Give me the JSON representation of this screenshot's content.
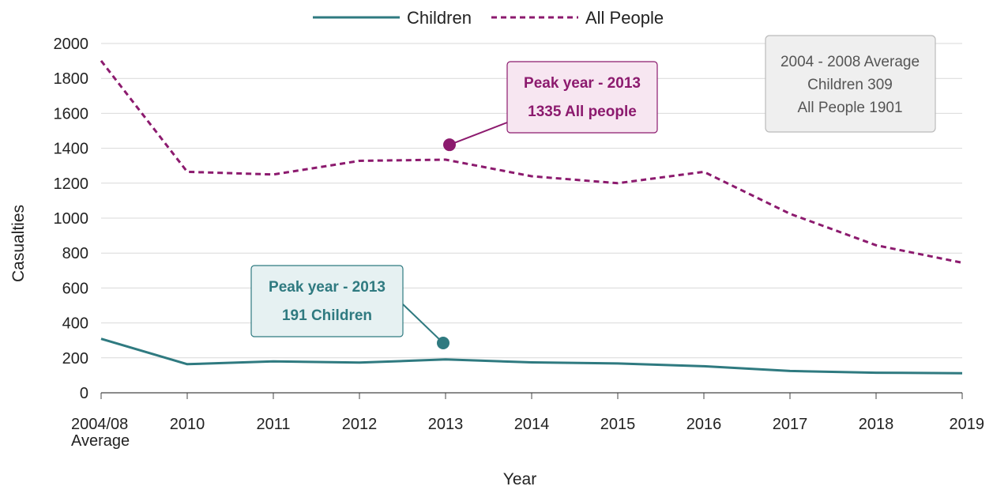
{
  "chart_data": {
    "type": "line",
    "xlabel": "Year",
    "ylabel": "Casualties",
    "ylim": [
      0,
      2000
    ],
    "y_ticks": [
      "0",
      "200",
      "400",
      "600",
      "800",
      "1000",
      "1200",
      "1400",
      "1600",
      "1800",
      "2000"
    ],
    "categories": [
      [
        "2004/08",
        "Average"
      ],
      [
        "2010"
      ],
      [
        "2011"
      ],
      [
        "2012"
      ],
      [
        "2013"
      ],
      [
        "2014"
      ],
      [
        "2015"
      ],
      [
        "2016"
      ],
      [
        "2017"
      ],
      [
        "2018"
      ],
      [
        "2019"
      ]
    ],
    "legend_position": "top-center",
    "grid": "horizontal",
    "series": [
      {
        "name": "Children",
        "style": "solid",
        "color": "#2f7a80",
        "values": [
          309,
          164,
          180,
          173,
          191,
          174,
          168,
          152,
          125,
          115,
          112
        ]
      },
      {
        "name": "All People",
        "style": "dashed",
        "color": "#8c1a6e",
        "values": [
          1901,
          1265,
          1250,
          1328,
          1335,
          1240,
          1200,
          1265,
          1025,
          845,
          745
        ]
      }
    ],
    "annotations": [
      {
        "series": "All People",
        "lines": [
          "Peak year - 2013",
          "1335 All people"
        ],
        "text_color": "#8c1a6e",
        "fill": "#f7e6f1",
        "border": "#8c1a6e",
        "marker_color": "#8c1a6e",
        "marker_x_index": 4,
        "marker_y": 1420
      },
      {
        "series": "Children",
        "lines": [
          "Peak year - 2013",
          "191 Children"
        ],
        "text_color": "#2f7a80",
        "fill": "#e6f1f2",
        "border": "#2f7a80",
        "marker_color": "#2f7a80",
        "marker_x_index": 4,
        "marker_y": 285
      }
    ],
    "info_box": {
      "lines": [
        "2004 - 2008 Average",
        "Children 309",
        "All People 1901"
      ],
      "fill": "#efefef",
      "border": "#bbbbbb"
    }
  }
}
